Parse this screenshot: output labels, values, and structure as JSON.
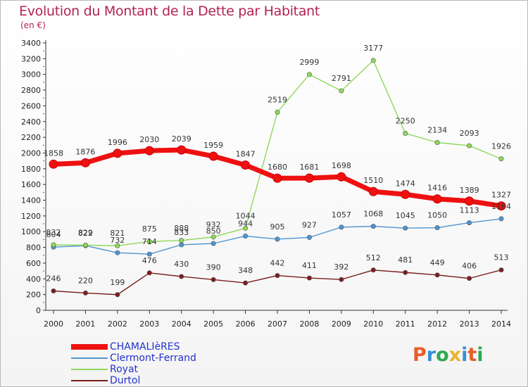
{
  "title": "Evolution du Montant de la Dette par Habitant",
  "unit_label": "(en €)",
  "brand": {
    "text": "Proxiti",
    "colors": [
      "#e85d2a",
      "#3a8fd6",
      "#2fa84f",
      "#e8b42a",
      "#3a8fd6",
      "#e85d2a",
      "#2fa84f"
    ]
  },
  "chart_data": {
    "type": "line",
    "title": "Evolution du Montant de la Dette par Habitant",
    "ylabel": "(en €)",
    "ylim": [
      0,
      3400
    ],
    "yticks": [
      0,
      200,
      400,
      600,
      800,
      1000,
      1200,
      1400,
      1600,
      1800,
      2000,
      2200,
      2400,
      2600,
      2800,
      3000,
      3200,
      3400
    ],
    "x": [
      "2000",
      "2001",
      "2002",
      "2003",
      "2004",
      "2005",
      "2006",
      "2007",
      "2008",
      "2009",
      "2010",
      "2011",
      "2012",
      "2013",
      "2014"
    ],
    "grid": false,
    "legend_position": "bottom-left",
    "series": [
      {
        "name": "Durtol",
        "color": "#7a1e1e",
        "values": [
          246,
          220,
          199,
          476,
          430,
          390,
          348,
          442,
          411,
          392,
          512,
          481,
          449,
          406,
          513
        ]
      },
      {
        "name": "Clermont-Ferrand",
        "color": "#4f95cf",
        "values": [
          804,
          822,
          732,
          714,
          833,
          850,
          944,
          905,
          927,
          1057,
          1068,
          1045,
          1050,
          1113,
          1164
        ]
      },
      {
        "name": "Royat",
        "color": "#90d85c",
        "values": [
          832,
          829,
          821,
          875,
          888,
          932,
          1044,
          2519,
          2999,
          2791,
          3177,
          2250,
          2134,
          2093,
          1926
        ]
      },
      {
        "name": "CHAMALIèRES",
        "color": "#ee1111",
        "values": [
          1858,
          1876,
          1996,
          2030,
          2039,
          1959,
          1847,
          1680,
          1681,
          1698,
          1510,
          1474,
          1416,
          1389,
          1327
        ]
      }
    ],
    "legend_order": [
      "CHAMALIèRES",
      "Clermont-Ferrand",
      "Royat",
      "Durtol"
    ]
  }
}
